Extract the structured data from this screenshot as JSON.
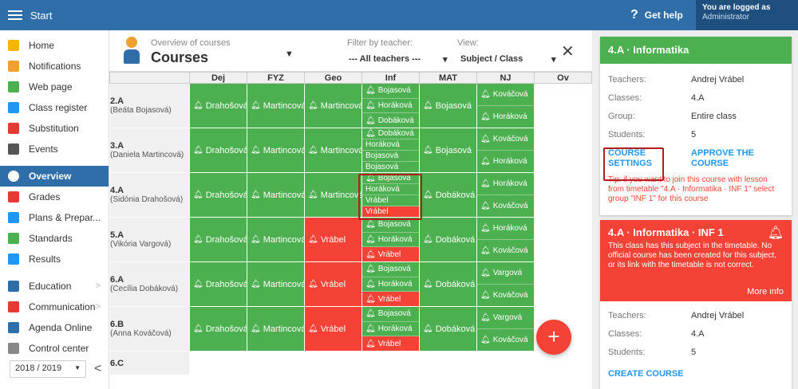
{
  "topbar": {
    "title": "Start",
    "help": "Get help",
    "login_line1": "You are logged as",
    "login_line2": "Administrator"
  },
  "sidebar": {
    "items": [
      {
        "label": "Home",
        "icon": "star-icon",
        "color": "#f5b400"
      },
      {
        "label": "Notifications",
        "icon": "envelope-icon",
        "color": "#f0a030"
      },
      {
        "label": "Web page",
        "icon": "home-icon",
        "color": "#4caf50"
      },
      {
        "label": "Class register",
        "icon": "book-icon",
        "color": "#2196f3"
      },
      {
        "label": "Substitution",
        "icon": "person-icon",
        "color": "#e53935"
      },
      {
        "label": "Events",
        "icon": "calendar-icon",
        "color": "#555555"
      },
      {
        "label": "Overview",
        "icon": "check-icon",
        "color": "#ffffff"
      },
      {
        "label": "Grades",
        "icon": "grades-icon",
        "color": "#e53935"
      },
      {
        "label": "Plans & Prepar...",
        "icon": "plans-icon",
        "color": "#2196f3"
      },
      {
        "label": "Standards",
        "icon": "shield-icon",
        "color": "#4caf50"
      },
      {
        "label": "Results",
        "icon": "bar-chart-icon",
        "color": "#2196f3"
      },
      {
        "label": "Education",
        "icon": "education-icon",
        "color": "#2f6ea8"
      },
      {
        "label": "Communication",
        "icon": "chat-icon",
        "color": "#e53935"
      },
      {
        "label": "Agenda Online",
        "icon": "pen-icon",
        "color": "#2f6ea8"
      },
      {
        "label": "Control center",
        "icon": "gear-icon",
        "color": "#888888"
      }
    ],
    "year": "2018 / 2019"
  },
  "header": {
    "small": "Overview of courses",
    "title": "Courses",
    "filter_label": "Filter by teacher:",
    "filter_value": "--- All teachers ---",
    "view_label": "View:",
    "view_value": "Subject / Class"
  },
  "grid": {
    "columns": [
      "",
      "Dej",
      "FYZ",
      "Geo",
      "Inf",
      "MAT",
      "NJ",
      "Ov"
    ],
    "rows": [
      {
        "cls": "2.A",
        "teacher": "(Beáta Bojasová)",
        "cells": [
          {
            "t": "g",
            "v": "Drahošová"
          },
          {
            "t": "g",
            "v": "Martincová"
          },
          {
            "t": "g",
            "v": "Martincová"
          },
          {
            "t": "stack",
            "subs": [
              {
                "v": "Bojasová",
                "c": "green"
              },
              {
                "v": "Horáková",
                "c": "green"
              },
              {
                "v": "Dobáková",
                "c": "green"
              }
            ]
          },
          {
            "t": "g",
            "v": "Bojasová"
          },
          {
            "t": "stack",
            "subs": [
              {
                "v": "Kováčová",
                "c": "green"
              },
              {
                "v": "Horáková",
                "c": "green"
              }
            ]
          },
          {
            "t": "e"
          }
        ]
      },
      {
        "cls": "3.A",
        "teacher": "(Daniela Martincová)",
        "cells": [
          {
            "t": "g",
            "v": "Drahošová"
          },
          {
            "t": "g",
            "v": "Martincová"
          },
          {
            "t": "g",
            "v": "Martincová"
          },
          {
            "t": "stack",
            "subs": [
              {
                "v": "Dobáková",
                "c": "green"
              },
              {
                "v": "Horáková",
                "c": "green"
              },
              {
                "v": "Bojasová",
                "c": "green"
              },
              {
                "v": "Bojasová",
                "c": "green"
              }
            ]
          },
          {
            "t": "g",
            "v": "Bojasová"
          },
          {
            "t": "stack",
            "subs": [
              {
                "v": "Kováčová",
                "c": "green"
              },
              {
                "v": "Horáková",
                "c": "green"
              }
            ]
          },
          {
            "t": "e"
          }
        ]
      },
      {
        "cls": "4.A",
        "teacher": "(Sidónia Drahošová)",
        "cells": [
          {
            "t": "g",
            "v": "Drahošová"
          },
          {
            "t": "g",
            "v": "Martincová"
          },
          {
            "t": "g",
            "v": "Martincová"
          },
          {
            "t": "stack",
            "subs": [
              {
                "v": "Bojasová",
                "c": "green"
              },
              {
                "v": "Horáková",
                "c": "green"
              },
              {
                "v": "Vrábel",
                "c": "green"
              },
              {
                "v": "Vrábel",
                "c": "red"
              }
            ]
          },
          {
            "t": "g",
            "v": "Dobáková"
          },
          {
            "t": "stack",
            "subs": [
              {
                "v": "Horáková",
                "c": "green"
              },
              {
                "v": "Kováčová",
                "c": "green"
              }
            ]
          },
          {
            "t": "e"
          }
        ]
      },
      {
        "cls": "5.A",
        "teacher": "(Vikória Vargová)",
        "cells": [
          {
            "t": "g",
            "v": "Drahošová"
          },
          {
            "t": "g",
            "v": "Martincová"
          },
          {
            "t": "r",
            "v": "Vrábel"
          },
          {
            "t": "stack",
            "subs": [
              {
                "v": "Bojasová",
                "c": "green"
              },
              {
                "v": "Horáková",
                "c": "green"
              },
              {
                "v": "Vrábel",
                "c": "red"
              }
            ]
          },
          {
            "t": "g",
            "v": "Dobáková"
          },
          {
            "t": "stack",
            "subs": [
              {
                "v": "Horáková",
                "c": "green"
              },
              {
                "v": "Kováčová",
                "c": "green"
              }
            ]
          },
          {
            "t": "e"
          }
        ]
      },
      {
        "cls": "6.A",
        "teacher": "(Cecília Dobáková)",
        "cells": [
          {
            "t": "g",
            "v": "Drahošová"
          },
          {
            "t": "g",
            "v": "Martincová"
          },
          {
            "t": "r",
            "v": "Vrábel"
          },
          {
            "t": "stack",
            "subs": [
              {
                "v": "Bojasová",
                "c": "green"
              },
              {
                "v": "Horáková",
                "c": "green"
              },
              {
                "v": "Vrábel",
                "c": "red"
              }
            ]
          },
          {
            "t": "g",
            "v": "Dobáková"
          },
          {
            "t": "stack",
            "subs": [
              {
                "v": "Vargová",
                "c": "green"
              },
              {
                "v": "Kováčová",
                "c": "green"
              }
            ]
          },
          {
            "t": "e"
          }
        ]
      },
      {
        "cls": "6.B",
        "teacher": "(Anna Kováčová)",
        "cells": [
          {
            "t": "g",
            "v": "Drahošová"
          },
          {
            "t": "g",
            "v": "Martincová"
          },
          {
            "t": "r",
            "v": "Vrábel"
          },
          {
            "t": "stack",
            "subs": [
              {
                "v": "Bojasová",
                "c": "green"
              },
              {
                "v": "Horáková",
                "c": "green"
              },
              {
                "v": "Vrábel",
                "c": "red"
              }
            ]
          },
          {
            "t": "g",
            "v": "Dobáková"
          },
          {
            "t": "stack",
            "subs": [
              {
                "v": "Vargová",
                "c": "green"
              },
              {
                "v": "Kováčová",
                "c": "green"
              }
            ]
          },
          {
            "t": "e"
          }
        ]
      },
      {
        "cls": "6.C",
        "teacher": "",
        "cells": [
          {
            "t": "e"
          },
          {
            "t": "e"
          },
          {
            "t": "e"
          },
          {
            "t": "e"
          },
          {
            "t": "e"
          },
          {
            "t": "e"
          },
          {
            "t": "e"
          }
        ]
      }
    ]
  },
  "fab": "+",
  "card1": {
    "title": "4.A · Informatika",
    "rows": [
      {
        "k": "Teachers:",
        "v": "Andrej Vrábel"
      },
      {
        "k": "Classes:",
        "v": "4.A"
      },
      {
        "k": "Group:",
        "v": "Entire class"
      },
      {
        "k": "Students:",
        "v": "5"
      }
    ],
    "link1": "COURSE SETTINGS",
    "link2": "APPROVE THE COURSE",
    "tip": "Tip: if you want to join this course with lesson from timetable \"4.A · Informatika · INF 1\" select group \"INF 1\" for this course"
  },
  "card2": {
    "title": "4.A · Informatika · INF 1",
    "text": "This class has this subject in the timetable. No official course has been created for this subject, or its link with the timetable is not correct.",
    "more": "More info",
    "rows": [
      {
        "k": "Teachers:",
        "v": "Andrej Vrábel"
      },
      {
        "k": "Classes:",
        "v": "4.A"
      },
      {
        "k": "Students:",
        "v": "5"
      }
    ],
    "create": "CREATE COURSE"
  },
  "colors": {
    "topbar": "#2f6ea8",
    "green": "#4caf50",
    "red": "#f44336",
    "link": "#2196f3"
  }
}
